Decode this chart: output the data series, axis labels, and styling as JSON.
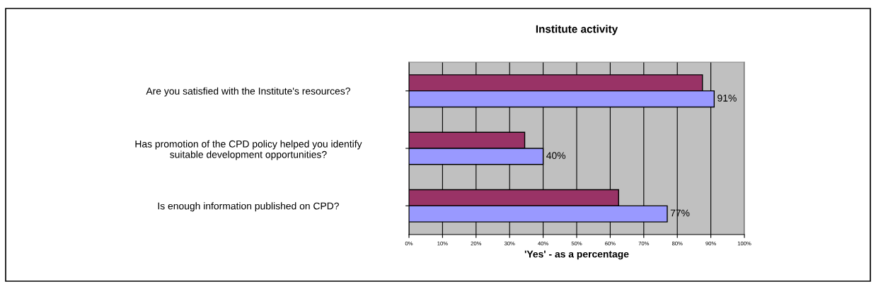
{
  "chart_data": {
    "type": "bar",
    "orientation": "horizontal",
    "title": "Institute activity",
    "xlabel": "'Yes' - as a percentage",
    "categories": [
      "Are you satisfied with the Institute's resources?",
      "Has promotion of the CPD policy helped you identify\nsuitable development opportunities?",
      "Is enough information published on CPD?"
    ],
    "series": [
      {
        "color": "#993366",
        "values": [
          87.5,
          34.5,
          62.5
        ]
      },
      {
        "color": "#9999ff",
        "values": [
          91,
          40,
          77
        ],
        "value_labels": [
          "91%",
          "40%",
          "77%"
        ]
      }
    ],
    "xlim": [
      0,
      100
    ],
    "xticks": [
      {
        "value": 0,
        "label": "0%"
      },
      {
        "value": 10,
        "label": "10%"
      },
      {
        "value": 20,
        "label": "20%"
      },
      {
        "value": 30,
        "label": "30%"
      },
      {
        "value": 40,
        "label": "40%"
      },
      {
        "value": 50,
        "label": "50%"
      },
      {
        "value": 60,
        "label": "60%"
      },
      {
        "value": 70,
        "label": "70%"
      },
      {
        "value": 80,
        "label": "80%"
      },
      {
        "value": 90,
        "label": "90%"
      },
      {
        "value": 100,
        "label": "100%"
      }
    ],
    "grid": "x",
    "legend": false
  }
}
